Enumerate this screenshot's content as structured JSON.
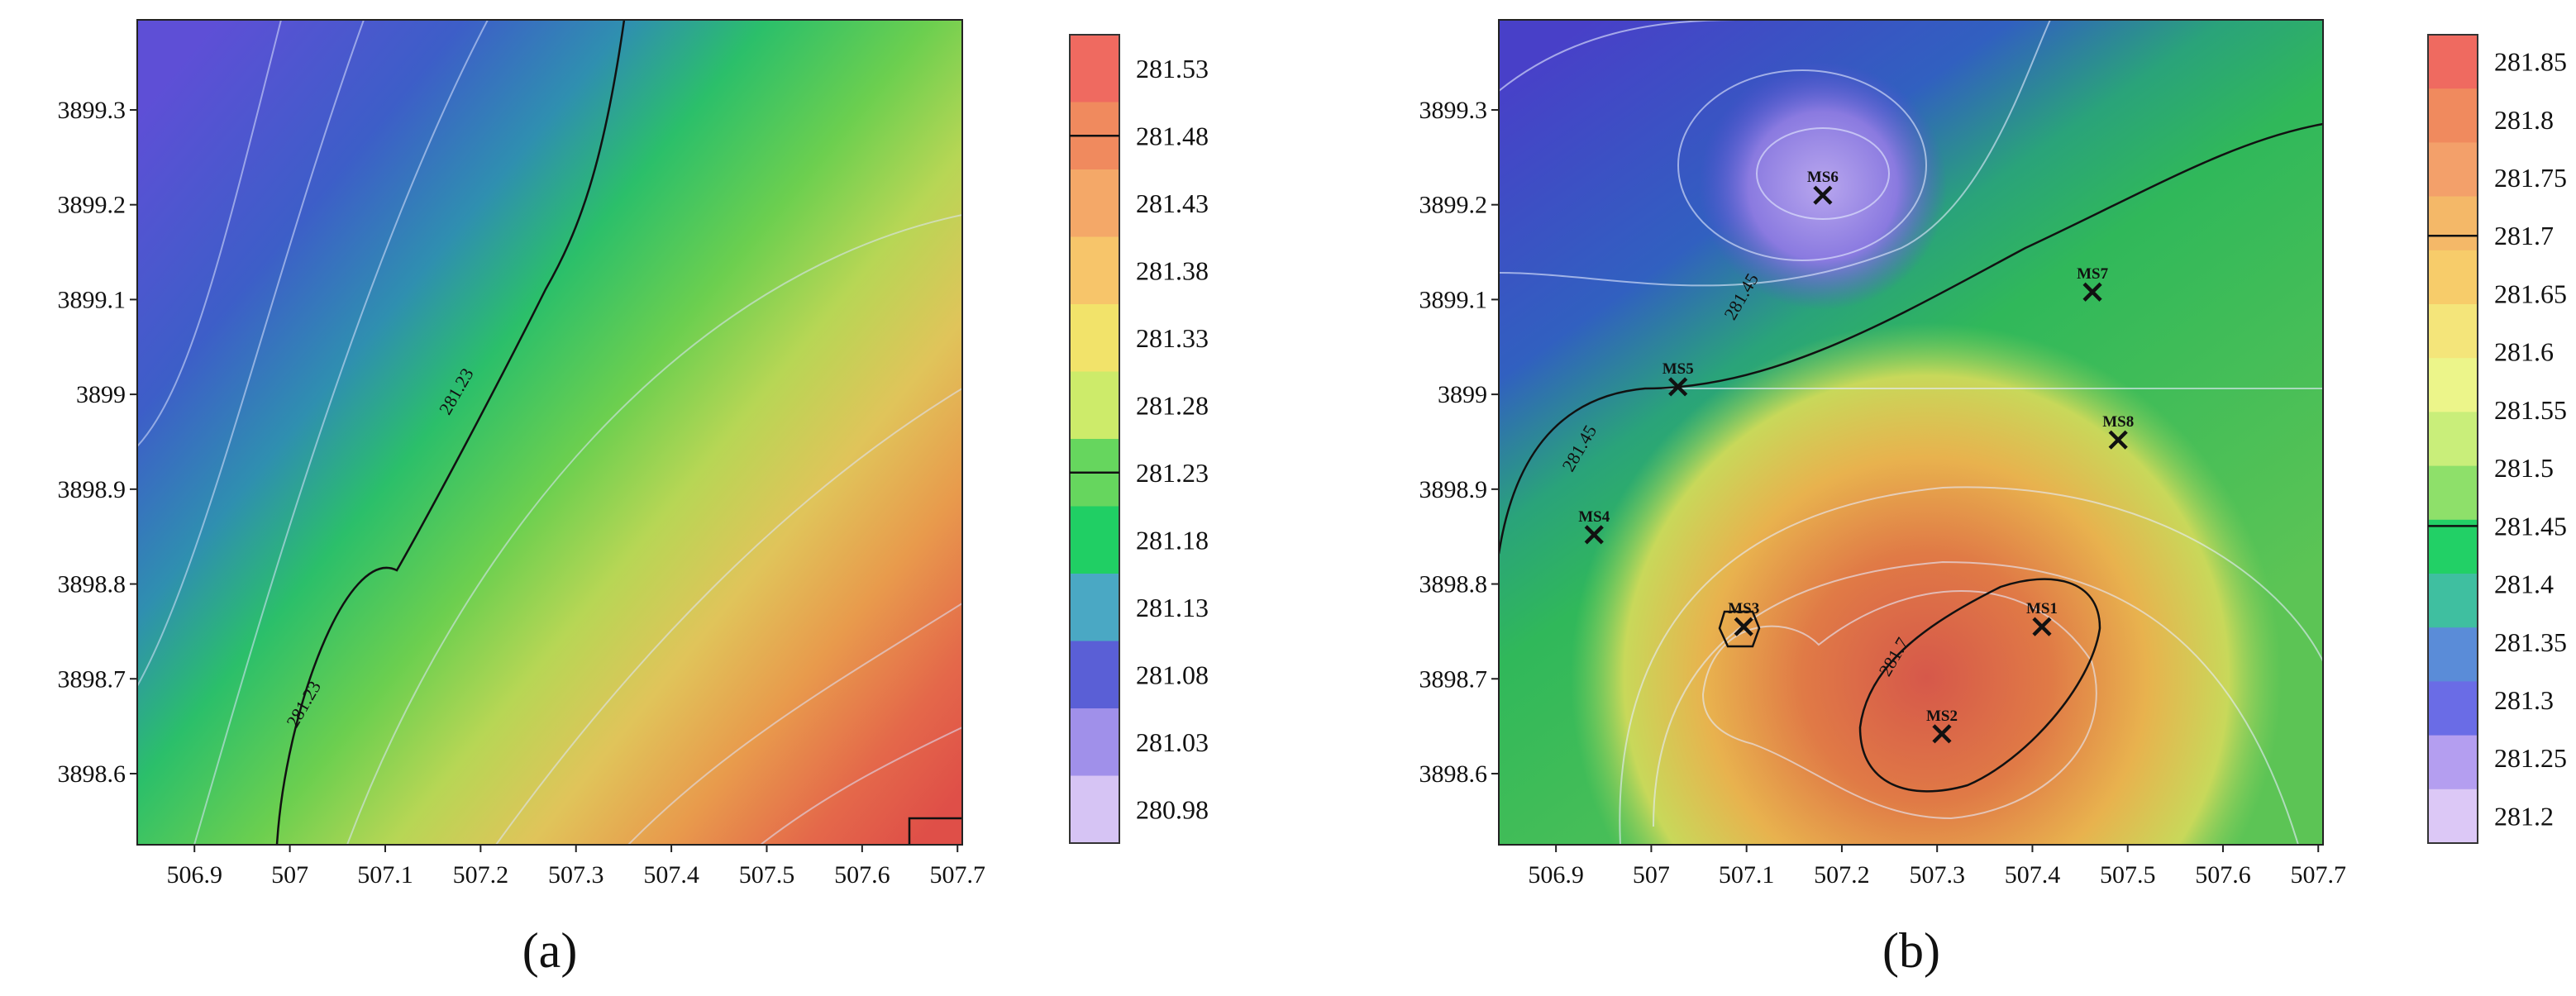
{
  "chart_data": [
    {
      "type": "heatmap",
      "panel_label": "(a)",
      "x_ticks": [
        506.9,
        507,
        507.1,
        507.2,
        507.3,
        507.4,
        507.5,
        507.6,
        507.7
      ],
      "y_ticks": [
        3898.6,
        3898.7,
        3898.8,
        3898.9,
        3899,
        3899.1,
        3899.2,
        3899.3
      ],
      "x_tick_labels": [
        "506.9",
        "507",
        "507.1",
        "507.2",
        "507.3",
        "507.4",
        "507.5",
        "507.6",
        "507.7"
      ],
      "y_tick_labels": [
        "3898.6",
        "3898.7",
        "3898.8",
        "3898.9",
        "3899",
        "3899.1",
        "3899.2",
        "3899.3"
      ],
      "xlim": [
        506.84,
        507.705
      ],
      "ylim": [
        3898.525,
        3899.395
      ],
      "colorbar_values": [
        "281.53",
        "281.48",
        "281.43",
        "281.38",
        "281.33",
        "281.28",
        "281.23",
        "281.18",
        "281.13",
        "281.08",
        "281.03",
        "280.98"
      ],
      "colorbar_colors": [
        "#ef6a60",
        "#f08a5e",
        "#f4a868",
        "#f7c56a",
        "#f2e36a",
        "#cdeb6a",
        "#66d65e",
        "#20cf64",
        "#4aa8c4",
        "#5a5fd6",
        "#a090ea",
        "#d6c4f4"
      ],
      "marked_levels": [
        "281.48",
        "281.23"
      ],
      "contour_labels": [
        {
          "text": "281.23",
          "x": 507.18,
          "y": 3899.0
        },
        {
          "text": "281.23",
          "x": 507.02,
          "y": 3898.67
        }
      ],
      "stations": []
    },
    {
      "type": "heatmap",
      "panel_label": "(b)",
      "x_ticks": [
        506.9,
        507,
        507.1,
        507.2,
        507.3,
        507.4,
        507.5,
        507.6,
        507.7
      ],
      "y_ticks": [
        3898.6,
        3898.7,
        3898.8,
        3898.9,
        3899,
        3899.1,
        3899.2,
        3899.3
      ],
      "x_tick_labels": [
        "506.9",
        "507",
        "507.1",
        "507.2",
        "507.3",
        "507.4",
        "507.5",
        "507.6",
        "507.7"
      ],
      "y_tick_labels": [
        "3898.6",
        "3898.7",
        "3898.8",
        "3898.9",
        "3899",
        "3899.1",
        "3899.2",
        "3899.3"
      ],
      "xlim": [
        506.84,
        507.705
      ],
      "ylim": [
        3898.525,
        3899.395
      ],
      "colorbar_values": [
        "281.85",
        "281.8",
        "281.75",
        "281.7",
        "281.65",
        "281.6",
        "281.55",
        "281.5",
        "281.45",
        "281.4",
        "281.35",
        "281.3",
        "281.25",
        "281.2"
      ],
      "colorbar_colors": [
        "#ef6a60",
        "#f08a5e",
        "#f3a06a",
        "#f4b868",
        "#f7cc6a",
        "#f4e57a",
        "#ecf58a",
        "#c9ee7a",
        "#8ee06a",
        "#22d066",
        "#3fbfa0",
        "#5a8cd8",
        "#6a6ce6",
        "#b49ef0",
        "#dcc8f6"
      ],
      "marked_levels": [
        "281.7",
        "281.45"
      ],
      "contour_labels": [
        {
          "text": "281.45",
          "x": 507.1,
          "y": 3899.1
        },
        {
          "text": "281.45",
          "x": 506.93,
          "y": 3898.94
        },
        {
          "text": "281.7",
          "x": 507.26,
          "y": 3898.72
        }
      ],
      "stations": [
        {
          "name": "MS1",
          "x": 507.41,
          "y": 3898.755
        },
        {
          "name": "MS2",
          "x": 507.305,
          "y": 3898.642
        },
        {
          "name": "MS3",
          "x": 507.097,
          "y": 3898.755
        },
        {
          "name": "MS4",
          "x": 506.94,
          "y": 3898.852
        },
        {
          "name": "MS5",
          "x": 507.028,
          "y": 3899.008
        },
        {
          "name": "MS6",
          "x": 507.18,
          "y": 3899.21
        },
        {
          "name": "MS7",
          "x": 507.463,
          "y": 3899.108
        },
        {
          "name": "MS8",
          "x": 507.49,
          "y": 3898.952
        }
      ]
    }
  ]
}
